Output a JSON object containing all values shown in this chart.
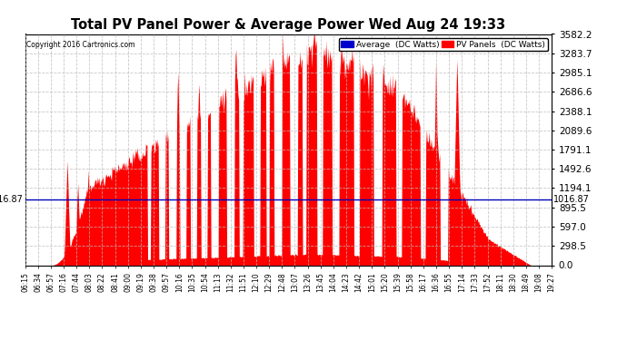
{
  "title": "Total PV Panel Power & Average Power Wed Aug 24 19:33",
  "copyright": "Copyright 2016 Cartronics.com",
  "legend_labels": [
    "Average  (DC Watts)",
    "PV Panels  (DC Watts)"
  ],
  "legend_colors": [
    "#0000cc",
    "#ff0000"
  ],
  "ymin": 0.0,
  "ymax": 3582.2,
  "yticks": [
    0.0,
    298.5,
    597.0,
    895.5,
    1194.1,
    1492.6,
    1791.1,
    2089.6,
    2388.1,
    2686.6,
    2985.1,
    3283.7,
    3582.2
  ],
  "hline_value": 1016.87,
  "hline_label": "1016.87",
  "bg_color": "#ffffff",
  "plot_bg_color": "#ffffff",
  "grid_color": "#aaaaaa",
  "fill_color": "#ff0000",
  "avg_line_color": "#0000bb",
  "x_tick_labels": [
    "06:15",
    "06:34",
    "06:57",
    "07:16",
    "07:44",
    "08:03",
    "08:22",
    "08:41",
    "09:00",
    "09:19",
    "09:38",
    "09:57",
    "10:16",
    "10:35",
    "10:54",
    "11:13",
    "11:32",
    "11:51",
    "12:10",
    "12:29",
    "12:48",
    "13:07",
    "13:26",
    "13:45",
    "14:04",
    "14:23",
    "14:42",
    "15:01",
    "15:20",
    "15:39",
    "15:58",
    "16:17",
    "16:36",
    "16:55",
    "17:14",
    "17:33",
    "17:52",
    "18:11",
    "18:30",
    "18:49",
    "19:08",
    "19:27"
  ],
  "num_points": 800
}
